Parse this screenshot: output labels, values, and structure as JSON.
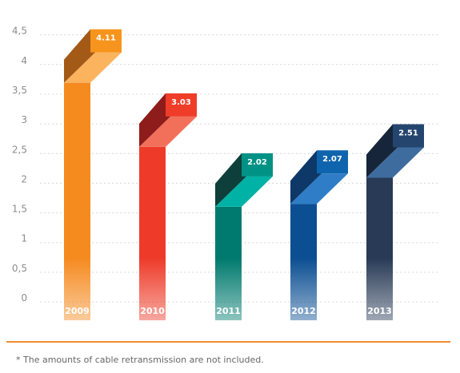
{
  "chart_data": {
    "type": "bar",
    "categories": [
      "2009",
      "2010",
      "2011",
      "2012",
      "2013"
    ],
    "values": [
      4.11,
      3.03,
      2.02,
      2.07,
      2.51
    ],
    "value_labels": [
      "4.11",
      "3.03",
      "2.02",
      "2.07",
      "2.51"
    ],
    "title": "",
    "xlabel": "",
    "ylabel": "",
    "ylim": [
      0,
      4.5
    ],
    "yticks": [
      0,
      0.5,
      1,
      1.5,
      2,
      2.5,
      3,
      3.5,
      4,
      4.5
    ],
    "ytick_labels": [
      "0",
      "0,5",
      "1",
      "1,5",
      "2",
      "2,5",
      "3",
      "3,5",
      "4",
      "4,5"
    ],
    "grid": true,
    "bar_style": "3d",
    "colors": [
      {
        "front": "#f58a1f",
        "top": "#fbb35e",
        "side": "#a35a16",
        "cap": "#f7941d"
      },
      {
        "front": "#ee3b29",
        "top": "#f2705a",
        "side": "#8e1c1a",
        "cap": "#ef3d2a"
      },
      {
        "front": "#007a6e",
        "top": "#00b2a5",
        "side": "#0e3f3a",
        "cap": "#009285"
      },
      {
        "front": "#0b4e92",
        "top": "#2e7dc6",
        "side": "#0d3868",
        "cap": "#0f64ae"
      },
      {
        "front": "#283a56",
        "top": "#3f6c9f",
        "side": "#16253a",
        "cap": "#24456e"
      }
    ]
  },
  "footnote": "* The amounts of cable retransmission are not included."
}
